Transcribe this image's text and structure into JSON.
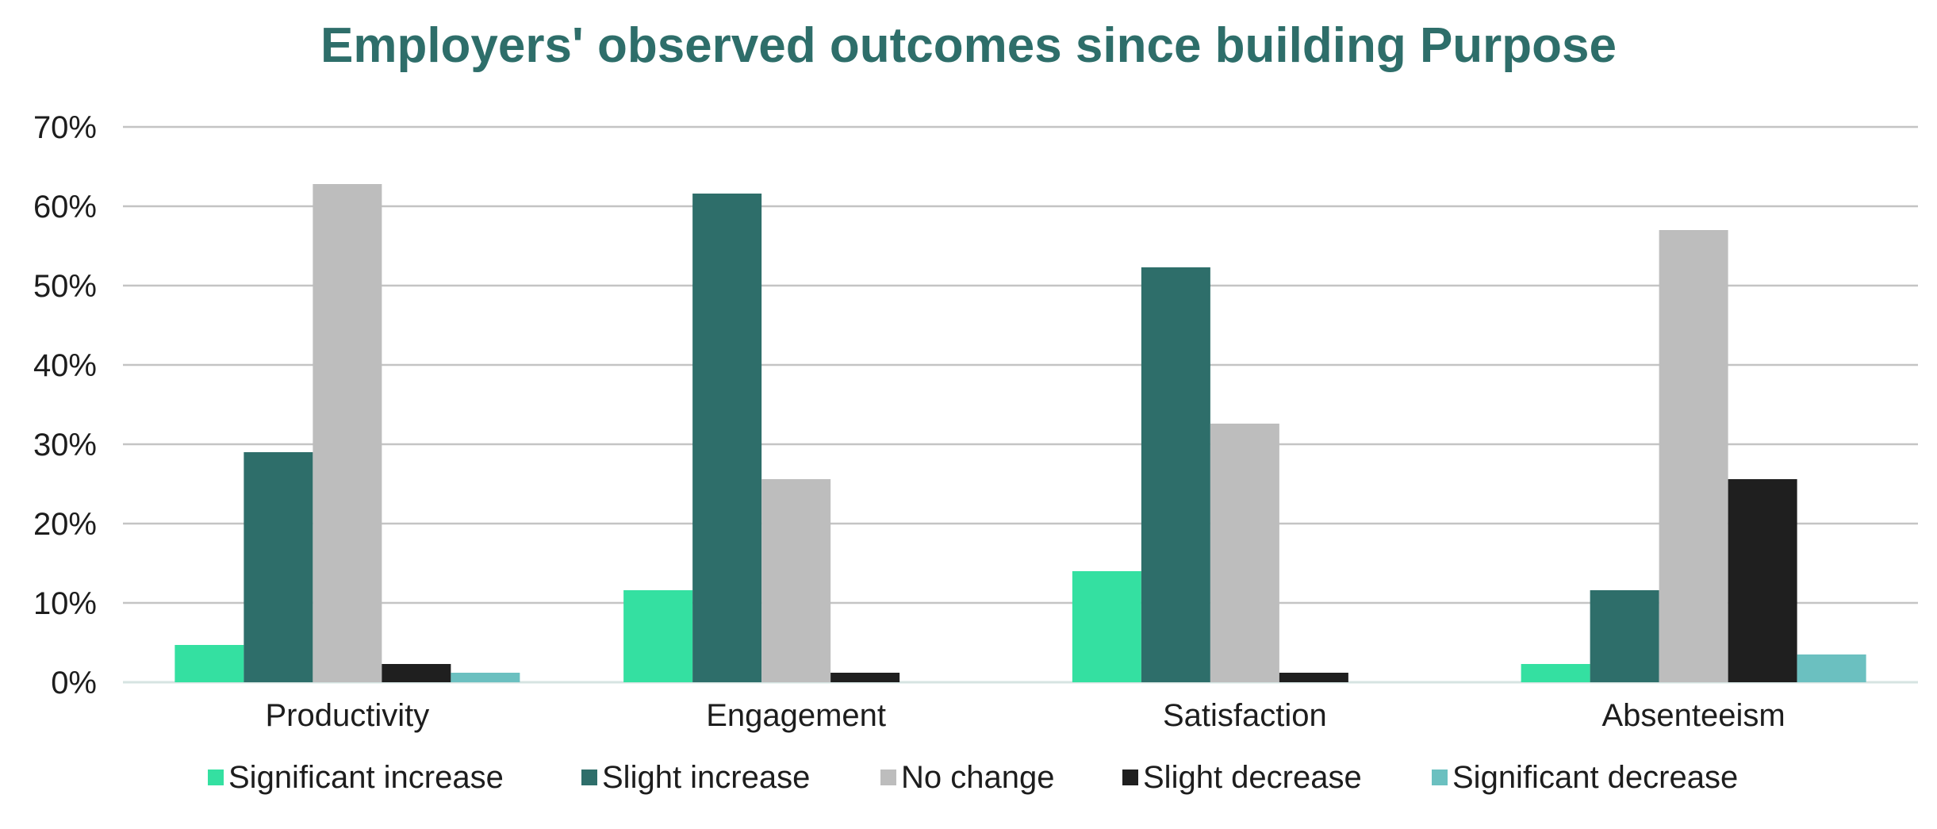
{
  "chart_data": {
    "type": "bar",
    "title": "Employers' observed outcomes since building Purpose",
    "xlabel": "",
    "ylabel": "",
    "ylim": [
      0,
      70
    ],
    "y_ticks": [
      0,
      10,
      20,
      30,
      40,
      50,
      60,
      70
    ],
    "y_tick_labels": [
      "0%",
      "10%",
      "20%",
      "30%",
      "40%",
      "50%",
      "60%",
      "70%"
    ],
    "grid": true,
    "legend_position": "bottom",
    "categories": [
      "Productivity",
      "Engagement",
      "Satisfaction",
      "Absenteeism"
    ],
    "series": [
      {
        "name": "Significant increase",
        "color": "#34e0a1",
        "values": [
          4.7,
          11.6,
          14.0,
          2.3
        ]
      },
      {
        "name": "Slight increase",
        "color": "#2e6e6a",
        "values": [
          29.0,
          61.6,
          52.3,
          11.6
        ]
      },
      {
        "name": "No change",
        "color": "#bdbdbd",
        "values": [
          62.8,
          25.6,
          32.6,
          57.0
        ]
      },
      {
        "name": "Slight decrease",
        "color": "#1f1f1f",
        "values": [
          2.3,
          1.2,
          1.2,
          25.6
        ]
      },
      {
        "name": "Significant decrease",
        "color": "#6bc0c0",
        "values": [
          1.2,
          0,
          0,
          3.5
        ]
      }
    ]
  }
}
